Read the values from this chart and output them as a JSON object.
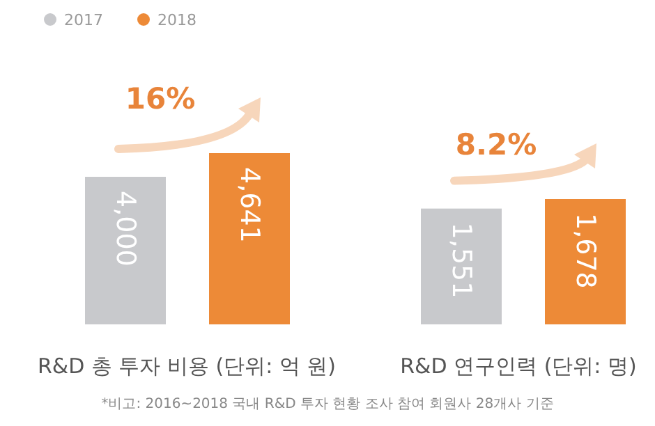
{
  "chart_data": [
    {
      "type": "bar",
      "xlabel": "R&D 총 투자 비용 (단위: 억 원)",
      "categories": [
        null
      ],
      "legend": "top left",
      "series": [
        {
          "name": "2017",
          "color": "#c8c9cc",
          "values": [
            4000
          ],
          "value_labels": [
            "4,000"
          ]
        },
        {
          "name": "2018",
          "color": "#ed8a37",
          "values": [
            4641
          ],
          "value_labels": [
            "4,641"
          ]
        }
      ],
      "annotations": [
        "16%",
        "*비고: 2016~2018 국내 R&D 투자 현황 조사 참여 회원사 28개사 기준"
      ]
    },
    {
      "type": "bar",
      "xlabel": "R&D 연구인력 (단위: 명)",
      "categories": [
        null
      ],
      "series": [
        {
          "color": "#c8c9cc",
          "values": [
            1551
          ],
          "value_labels": [
            "1,551"
          ]
        },
        {
          "color": "#ed8a37",
          "values": [
            1678
          ],
          "value_labels": [
            "1,678"
          ]
        }
      ],
      "annotations": [
        "8.2%"
      ]
    }
  ]
}
